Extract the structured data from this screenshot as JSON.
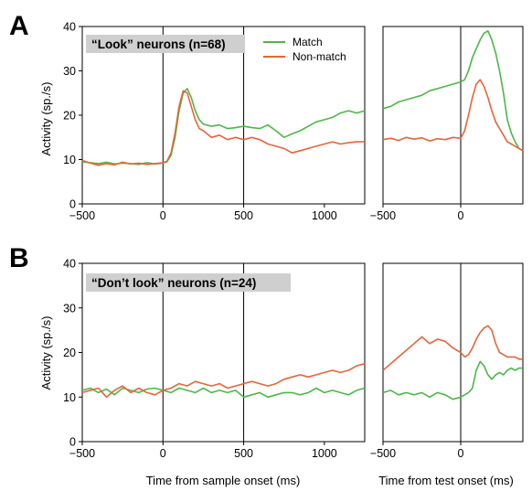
{
  "colors": {
    "match": "#4db848",
    "nonmatch": "#e8643a"
  },
  "panels": [
    {
      "letter": "A",
      "title": "“Look” neurons (n=68)"
    },
    {
      "letter": "B",
      "title": "“Don’t look” neurons (n=24)"
    }
  ],
  "legend": {
    "match": "Match",
    "nonmatch": "Non-match"
  },
  "ylabel": "Activity (sp./s)",
  "xlabel_sample": "Time from sample onset (ms)",
  "xlabel_test": "Time from test onset (ms)",
  "chart_data": [
    {
      "type": "line",
      "panel": "A",
      "subplot": "sample",
      "xlim": [
        -500,
        1250
      ],
      "ylim": [
        0,
        40
      ],
      "xticks": [
        -500,
        0,
        500,
        1000
      ],
      "yticks": [
        0,
        10,
        20,
        30,
        40
      ],
      "vlines": [
        0,
        500
      ],
      "series": [
        {
          "name": "Match",
          "x": [
            -500,
            -450,
            -400,
            -350,
            -300,
            -250,
            -200,
            -150,
            -100,
            -50,
            0,
            25,
            50,
            75,
            100,
            125,
            150,
            175,
            200,
            225,
            250,
            300,
            350,
            400,
            450,
            500,
            550,
            600,
            650,
            700,
            750,
            800,
            850,
            900,
            950,
            1000,
            1050,
            1100,
            1150,
            1200,
            1250
          ],
          "y": [
            9.5,
            9.3,
            9.1,
            9.4,
            9.0,
            9.2,
            9.1,
            8.9,
            9.3,
            9.0,
            9.2,
            9.5,
            11,
            15,
            21,
            25,
            26,
            24,
            21,
            19,
            18,
            17.5,
            17.8,
            17,
            17.2,
            17.5,
            17.2,
            17,
            17.8,
            16.5,
            15,
            15.8,
            16.5,
            17.5,
            18.5,
            19,
            19.5,
            20.5,
            21,
            20.5,
            21
          ]
        },
        {
          "name": "Non-match",
          "x": [
            -500,
            -450,
            -400,
            -350,
            -300,
            -250,
            -200,
            -150,
            -100,
            -50,
            0,
            25,
            50,
            75,
            100,
            125,
            150,
            175,
            200,
            225,
            250,
            300,
            350,
            400,
            450,
            500,
            550,
            600,
            650,
            700,
            750,
            800,
            850,
            900,
            950,
            1000,
            1050,
            1100,
            1150,
            1200,
            1250
          ],
          "y": [
            9.8,
            9.2,
            8.7,
            9.1,
            8.8,
            9.4,
            9.0,
            9.2,
            8.9,
            9.1,
            9.3,
            9.6,
            11.5,
            16,
            22,
            25.5,
            25,
            22,
            19,
            17,
            16.5,
            15,
            15.5,
            14.5,
            15,
            14.5,
            15,
            14.5,
            13.5,
            13,
            12.5,
            11.5,
            12,
            12.5,
            13,
            13.5,
            14,
            13.5,
            13.8,
            14,
            14
          ]
        }
      ]
    },
    {
      "type": "line",
      "panel": "A",
      "subplot": "test",
      "xlim": [
        -500,
        400
      ],
      "ylim": [
        0,
        40
      ],
      "xticks": [
        -500,
        0
      ],
      "vlines": [
        0
      ],
      "series": [
        {
          "name": "Match",
          "x": [
            -500,
            -450,
            -400,
            -350,
            -300,
            -250,
            -200,
            -150,
            -100,
            -50,
            0,
            25,
            50,
            75,
            100,
            125,
            150,
            175,
            200,
            225,
            250,
            275,
            300,
            325,
            350,
            375,
            400
          ],
          "y": [
            21.5,
            22,
            23,
            23.5,
            24,
            24.5,
            25.5,
            26,
            26.5,
            27,
            27.5,
            28,
            30,
            33,
            35,
            37,
            38.5,
            39,
            37,
            34,
            30,
            25,
            19,
            16,
            14,
            12.5,
            12
          ]
        },
        {
          "name": "Non-match",
          "x": [
            -500,
            -450,
            -400,
            -350,
            -300,
            -250,
            -200,
            -150,
            -100,
            -50,
            0,
            25,
            50,
            75,
            100,
            125,
            150,
            175,
            200,
            225,
            250,
            275,
            300,
            325,
            350,
            375,
            400
          ],
          "y": [
            14.5,
            14.8,
            14.3,
            15,
            14.6,
            14.9,
            14.2,
            14.7,
            14.5,
            15,
            14.8,
            16.5,
            20,
            24,
            27,
            28,
            26.5,
            24,
            21,
            18.5,
            17,
            15.5,
            14,
            13.5,
            13,
            12.5,
            12
          ]
        }
      ]
    },
    {
      "type": "line",
      "panel": "B",
      "subplot": "sample",
      "xlim": [
        -500,
        1250
      ],
      "ylim": [
        0,
        40
      ],
      "xticks": [
        -500,
        0,
        500,
        1000
      ],
      "yticks": [
        0,
        10,
        20,
        30,
        40
      ],
      "vlines": [
        0,
        500
      ],
      "series": [
        {
          "name": "Match",
          "x": [
            -500,
            -450,
            -400,
            -350,
            -300,
            -250,
            -200,
            -150,
            -100,
            -50,
            0,
            50,
            100,
            150,
            200,
            250,
            300,
            350,
            400,
            450,
            500,
            550,
            600,
            650,
            700,
            750,
            800,
            850,
            900,
            950,
            1000,
            1050,
            1100,
            1150,
            1200,
            1250
          ],
          "y": [
            11.5,
            12,
            11,
            11.8,
            10.5,
            12,
            11.5,
            11,
            11.8,
            12,
            11.5,
            11,
            12,
            11.5,
            11,
            12,
            11,
            11.5,
            11,
            11.5,
            10,
            10.5,
            11,
            10,
            10.5,
            11,
            11,
            10.5,
            11,
            12,
            11,
            11.5,
            11,
            10.5,
            11.5,
            12
          ]
        },
        {
          "name": "Non-match",
          "x": [
            -500,
            -450,
            -400,
            -350,
            -300,
            -250,
            -200,
            -150,
            -100,
            -50,
            0,
            50,
            100,
            150,
            200,
            250,
            300,
            350,
            400,
            450,
            500,
            550,
            600,
            650,
            700,
            750,
            800,
            850,
            900,
            950,
            1000,
            1050,
            1100,
            1150,
            1200,
            1250
          ],
          "y": [
            11,
            11.5,
            12,
            10,
            11.5,
            12.5,
            11,
            12,
            11,
            10.5,
            11.5,
            12,
            13,
            12.5,
            13.5,
            13,
            12.5,
            13,
            12,
            12.5,
            13,
            13.5,
            13,
            12.5,
            13,
            14,
            14.5,
            15,
            14.5,
            15,
            15.5,
            16,
            15.5,
            16,
            17,
            17.5
          ]
        }
      ]
    },
    {
      "type": "line",
      "panel": "B",
      "subplot": "test",
      "xlim": [
        -500,
        400
      ],
      "ylim": [
        0,
        40
      ],
      "xticks": [
        -500,
        0
      ],
      "vlines": [
        0
      ],
      "series": [
        {
          "name": "Match",
          "x": [
            -500,
            -450,
            -400,
            -350,
            -300,
            -250,
            -200,
            -150,
            -100,
            -50,
            0,
            25,
            50,
            75,
            100,
            125,
            150,
            175,
            200,
            225,
            250,
            275,
            300,
            325,
            350,
            375,
            400
          ],
          "y": [
            11,
            11.5,
            10.5,
            11,
            10.5,
            11,
            10,
            11,
            10.5,
            9.5,
            10,
            10.5,
            11,
            12,
            16,
            18,
            17,
            15,
            14,
            15,
            15.5,
            15,
            16,
            16.5,
            16,
            16.5,
            16.5
          ]
        },
        {
          "name": "Non-match",
          "x": [
            -500,
            -450,
            -400,
            -350,
            -300,
            -250,
            -200,
            -150,
            -100,
            -50,
            0,
            25,
            50,
            75,
            100,
            125,
            150,
            175,
            200,
            225,
            250,
            275,
            300,
            325,
            350,
            375,
            400
          ],
          "y": [
            16,
            17.5,
            19,
            20.5,
            22,
            23.5,
            22,
            23,
            22.5,
            21,
            20,
            19,
            19.5,
            21,
            23,
            24.5,
            25.5,
            26,
            25,
            22,
            20,
            19.5,
            19,
            19,
            19,
            18.5,
            18.5
          ]
        }
      ]
    }
  ]
}
